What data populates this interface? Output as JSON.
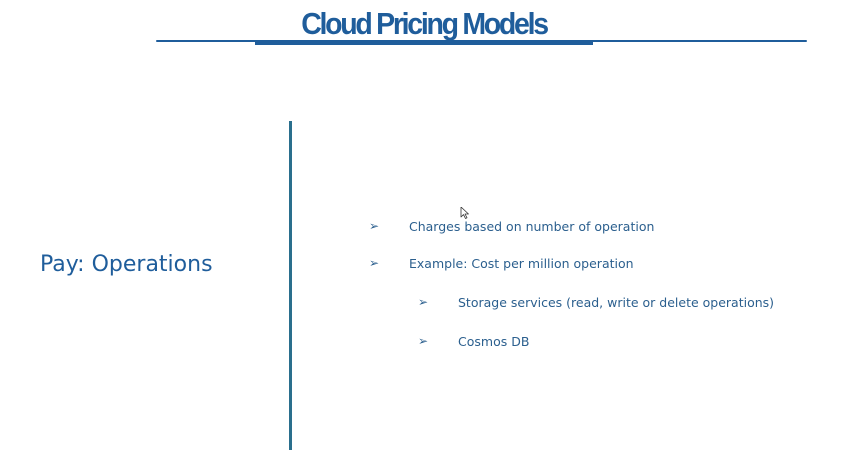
{
  "slide": {
    "title": "Cloud Pricing Models",
    "left_heading": "Pay: Operations",
    "bullets": [
      {
        "arrow": "➢",
        "text": "Charges based on number of operation"
      },
      {
        "arrow": "➢",
        "text": "Example: Cost per million operation"
      }
    ],
    "sub_bullets": [
      {
        "arrow": "➢",
        "text": "Storage services (read, write or delete operations)"
      },
      {
        "arrow": "➢",
        "text": "Cosmos DB"
      }
    ]
  },
  "colors": {
    "title": "#1f5d9b",
    "text": "#2b5f8e",
    "divider": "#2a6f8d",
    "background": "#ffffff"
  },
  "icons": {
    "cursor": "mouse-pointer-icon",
    "bullet": "arrow-bullet-icon"
  }
}
